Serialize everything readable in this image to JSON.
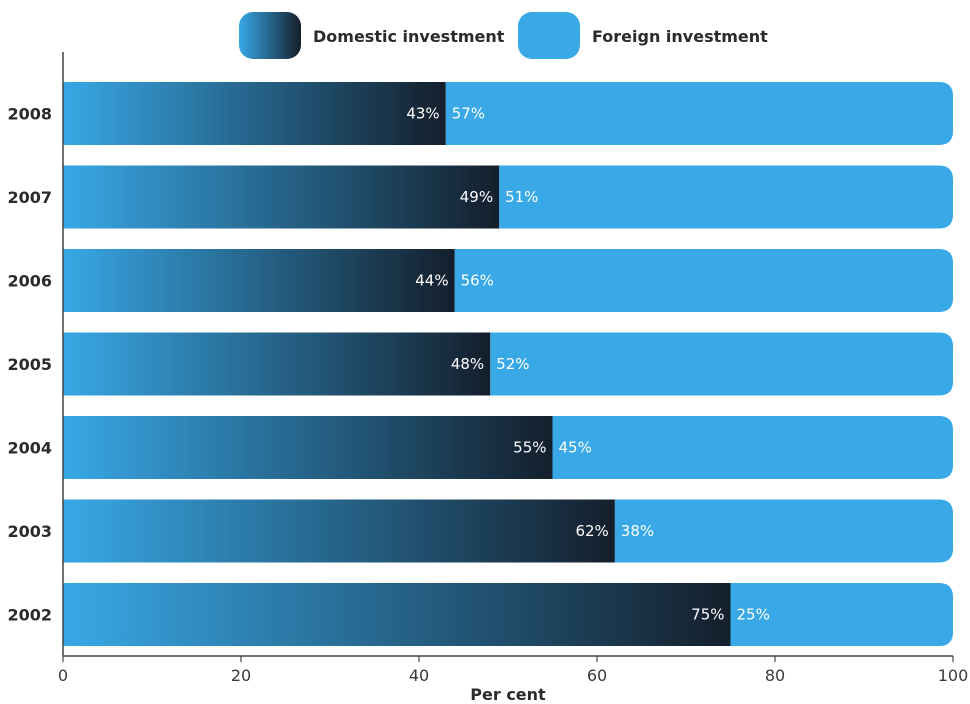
{
  "chart_data": {
    "type": "bar",
    "orientation": "horizontal",
    "stacked": true,
    "categories": [
      "2008",
      "2007",
      "2006",
      "2005",
      "2004",
      "2003",
      "2002"
    ],
    "series": [
      {
        "name": "Domestic investment",
        "values": [
          43,
          49,
          44,
          48,
          55,
          62,
          75
        ],
        "labels": [
          "43%",
          "49%",
          "44%",
          "48%",
          "55%",
          "62%",
          "75%"
        ],
        "color_start": "#38a8e6",
        "color_end": "#141f2c"
      },
      {
        "name": "Foreign investment",
        "values": [
          57,
          51,
          56,
          52,
          45,
          38,
          25
        ],
        "labels": [
          "57%",
          "51%",
          "56%",
          "52%",
          "45%",
          "38%",
          "25%"
        ],
        "color": "#38a8e6"
      }
    ],
    "xlabel": "Per cent",
    "ylabel": "",
    "xlim": [
      0,
      100
    ],
    "xticks": [
      0,
      20,
      40,
      60,
      80,
      100
    ],
    "xtick_labels": [
      "0",
      "20",
      "40",
      "60",
      "80",
      "100"
    ],
    "grid": false,
    "legend_position": "top"
  }
}
